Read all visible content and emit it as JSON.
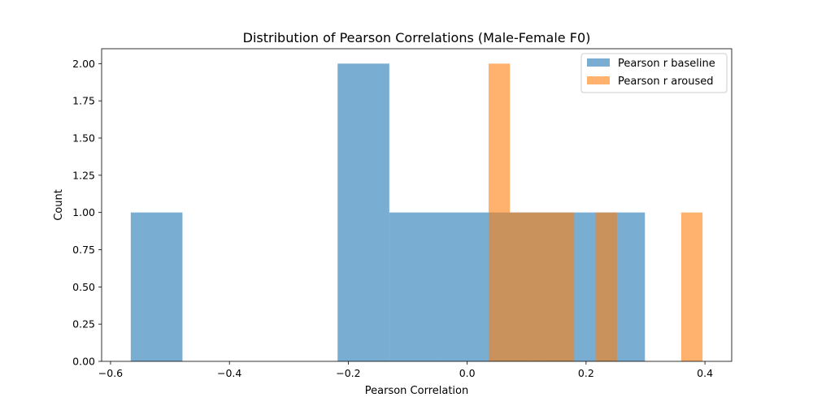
{
  "chart_data": {
    "type": "bar",
    "title": "Distribution of Pearson Correlations (Male-Female F0)",
    "xlabel": "Pearson Correlation",
    "ylabel": "Count",
    "xlim": [
      -0.615,
      0.445
    ],
    "ylim": [
      0,
      2.1
    ],
    "xticks": [
      -0.6,
      -0.4,
      -0.2,
      0.0,
      0.2,
      0.4
    ],
    "xtick_labels": [
      "−0.6",
      "−0.4",
      "−0.2",
      "0.0",
      "0.2",
      "0.4"
    ],
    "yticks": [
      0.0,
      0.25,
      0.5,
      0.75,
      1.0,
      1.25,
      1.5,
      1.75,
      2.0
    ],
    "ytick_labels": [
      "0.00",
      "0.25",
      "0.50",
      "0.75",
      "1.00",
      "1.25",
      "1.50",
      "1.75",
      "2.00"
    ],
    "grid": false,
    "legend_position": "top-right",
    "series": [
      {
        "name": "Pearson r baseline",
        "color": "#1f77b4",
        "opacity": 0.6,
        "bins": [
          {
            "x0": -0.566,
            "x1": -0.479,
            "count": 1
          },
          {
            "x0": -0.479,
            "x1": -0.392,
            "count": 0
          },
          {
            "x0": -0.392,
            "x1": -0.305,
            "count": 0
          },
          {
            "x0": -0.305,
            "x1": -0.218,
            "count": 0
          },
          {
            "x0": -0.218,
            "x1": -0.131,
            "count": 2
          },
          {
            "x0": -0.131,
            "x1": -0.044,
            "count": 1
          },
          {
            "x0": -0.044,
            "x1": 0.043,
            "count": 1
          },
          {
            "x0": 0.043,
            "x1": 0.13,
            "count": 1
          },
          {
            "x0": 0.13,
            "x1": 0.216,
            "count": 1
          },
          {
            "x0": 0.216,
            "x1": 0.299,
            "count": 1
          }
        ]
      },
      {
        "name": "Pearson r aroused",
        "color": "#ff7f0e",
        "opacity": 0.6,
        "bins": [
          {
            "x0": 0.036,
            "x1": 0.072,
            "count": 2
          },
          {
            "x0": 0.072,
            "x1": 0.108,
            "count": 1
          },
          {
            "x0": 0.108,
            "x1": 0.144,
            "count": 1
          },
          {
            "x0": 0.144,
            "x1": 0.18,
            "count": 1
          },
          {
            "x0": 0.18,
            "x1": 0.216,
            "count": 0
          },
          {
            "x0": 0.216,
            "x1": 0.252,
            "count": 1
          },
          {
            "x0": 0.252,
            "x1": 0.288,
            "count": 0
          },
          {
            "x0": 0.288,
            "x1": 0.324,
            "count": 0
          },
          {
            "x0": 0.324,
            "x1": 0.36,
            "count": 0
          },
          {
            "x0": 0.36,
            "x1": 0.396,
            "count": 1
          }
        ]
      }
    ]
  }
}
